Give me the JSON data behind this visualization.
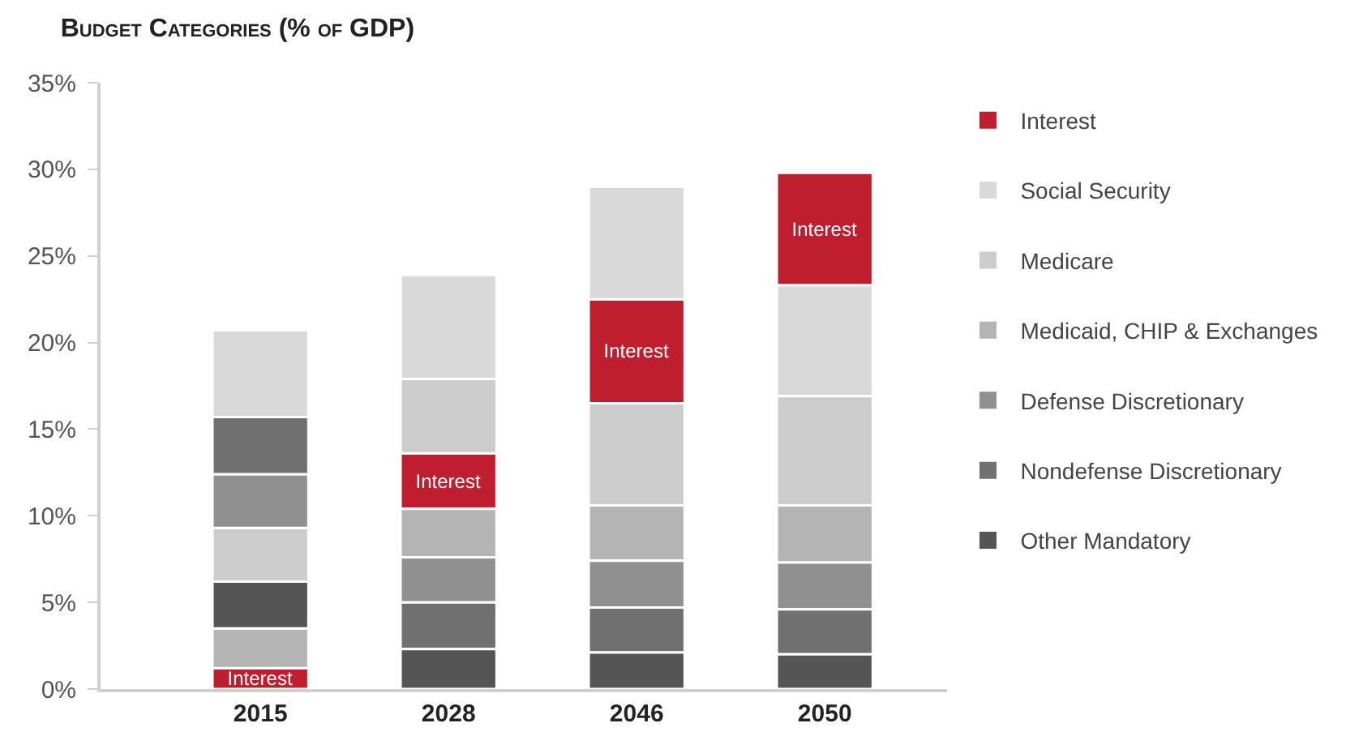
{
  "chart_data": {
    "type": "bar",
    "title": "Budget Categories (% of GDP)",
    "categories": [
      "2015",
      "2028",
      "2046",
      "2050"
    ],
    "series": [
      {
        "name": "Interest",
        "color": "#be1e2d",
        "values": [
          1.2,
          3.2,
          6.0,
          6.5
        ],
        "base": [
          0,
          10.4,
          16.5,
          23.3
        ],
        "value_labels": [
          "Interest",
          "Interest",
          "Interest",
          "Interest"
        ]
      },
      {
        "name": "Social Security",
        "color": "#d9d9d9",
        "values": [
          5.0,
          6.0,
          6.5,
          6.4
        ],
        "base": [
          15.7,
          17.9,
          22.5,
          16.9
        ]
      },
      {
        "name": "Medicare",
        "color": "#cccccc",
        "values": [
          3.1,
          4.3,
          5.9,
          6.3
        ],
        "base": [
          6.2,
          13.6,
          10.6,
          10.6
        ]
      },
      {
        "name": "Medicaid, CHIP & Exchanges",
        "color": "#b4b4b4",
        "values": [
          2.3,
          2.8,
          3.2,
          3.3
        ],
        "base": [
          1.2,
          7.6,
          7.4,
          7.3
        ]
      },
      {
        "name": "Defense Discretionary",
        "color": "#909090",
        "values": [
          3.1,
          2.6,
          2.7,
          2.7
        ],
        "base": [
          9.3,
          5.0,
          4.7,
          4.6
        ]
      },
      {
        "name": "Nondefense Discretionary",
        "color": "#707070",
        "values": [
          3.3,
          2.7,
          2.6,
          2.6
        ],
        "base": [
          12.4,
          2.3,
          2.1,
          2.0
        ]
      },
      {
        "name": "Other Mandatory",
        "color": "#555555",
        "values": [
          2.7,
          2.3,
          2.1,
          2.0
        ],
        "base": [
          3.5,
          0,
          0,
          0
        ]
      }
    ],
    "ylim": [
      0,
      35
    ],
    "yticks": [
      {
        "value": 0,
        "label": "0%"
      },
      {
        "value": 5,
        "label": "5%"
      },
      {
        "value": 10,
        "label": "10%"
      },
      {
        "value": 15,
        "label": "15%"
      },
      {
        "value": 20,
        "label": "20%"
      },
      {
        "value": 25,
        "label": "25%"
      },
      {
        "value": 30,
        "label": "30%"
      },
      {
        "value": 35,
        "label": "35%"
      }
    ],
    "grid": false,
    "legend": "right"
  }
}
